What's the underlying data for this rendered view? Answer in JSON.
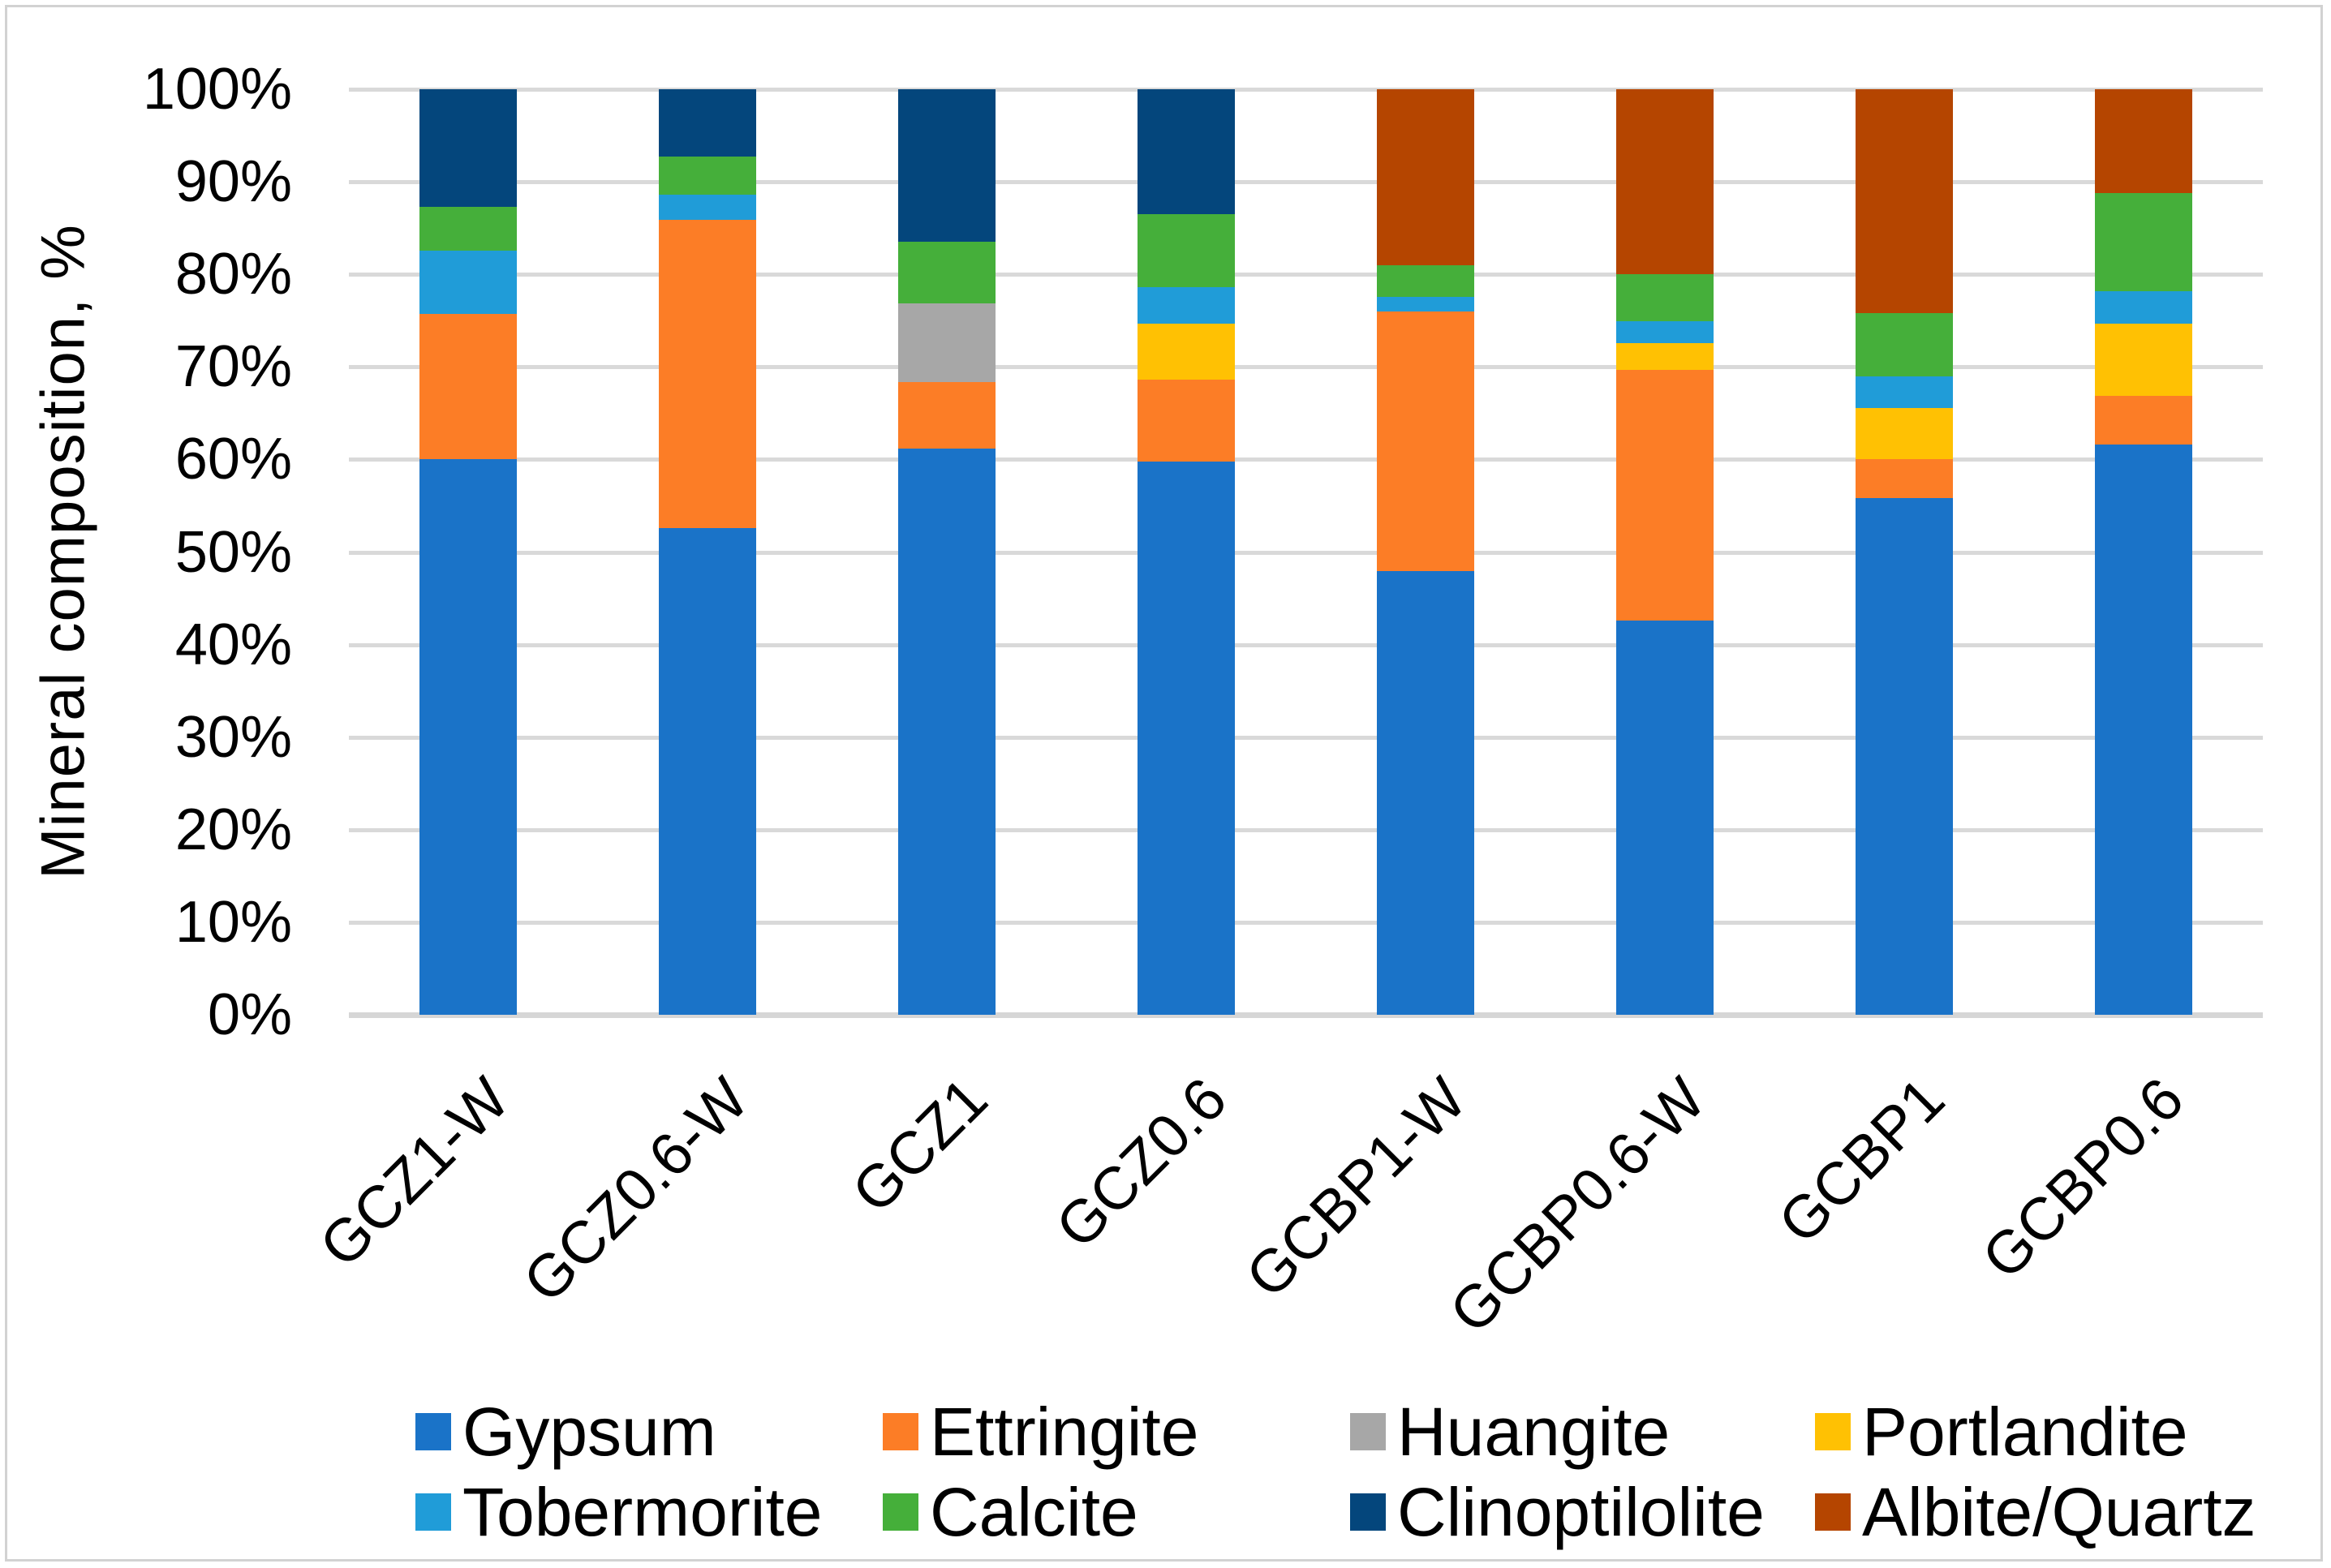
{
  "chart_data": {
    "type": "bar",
    "stacked": true,
    "percent_stacked": true,
    "title": "",
    "ylabel": "Mineral composition, %",
    "xlabel": "",
    "ylim": [
      0,
      100
    ],
    "grid": true,
    "legend_position": "bottom",
    "yticks": [
      0,
      10,
      20,
      30,
      40,
      50,
      60,
      70,
      80,
      90,
      100
    ],
    "ytick_labels": [
      "0%",
      "10%",
      "20%",
      "30%",
      "40%",
      "50%",
      "60%",
      "70%",
      "80%",
      "90%",
      "100%"
    ],
    "categories": [
      "GCZ1-W",
      "GCZ0.6-W",
      "GCZ1",
      "GCZ0.6",
      "GCBP1-W",
      "GCBP0.6-W",
      "GCBP1",
      "GCBP0.6"
    ],
    "series": [
      {
        "name": "Gypsum",
        "color": "#1A73C8",
        "values": [
          60.0,
          52.6,
          61.2,
          59.8,
          47.9,
          42.6,
          55.8,
          61.6
        ]
      },
      {
        "name": "Ettringite",
        "color": "#FC7D26",
        "values": [
          15.7,
          33.3,
          7.2,
          8.8,
          28.1,
          27.1,
          4.2,
          5.3
        ]
      },
      {
        "name": "Huangite",
        "color": "#A7A7A7",
        "values": [
          0.0,
          0.0,
          8.5,
          0.0,
          0.0,
          0.0,
          0.0,
          0.0
        ]
      },
      {
        "name": "Portlandite",
        "color": "#FFC103",
        "values": [
          0.0,
          0.0,
          0.0,
          6.1,
          0.0,
          2.9,
          5.6,
          7.8
        ]
      },
      {
        "name": "Tobermorite",
        "color": "#209CD8",
        "values": [
          6.9,
          2.7,
          0.0,
          3.9,
          1.6,
          2.3,
          3.4,
          3.5
        ]
      },
      {
        "name": "Calcite",
        "color": "#45AF3A",
        "values": [
          4.7,
          4.1,
          6.6,
          7.9,
          3.4,
          5.1,
          6.8,
          10.6
        ]
      },
      {
        "name": "Clinoptilolite",
        "color": "#04467C",
        "values": [
          12.7,
          7.3,
          16.5,
          13.5,
          0.0,
          0.0,
          0.0,
          0.0
        ]
      },
      {
        "name": "Albite/Quartz",
        "color": "#B54500",
        "values": [
          0.0,
          0.0,
          0.0,
          0.0,
          19.0,
          20.0,
          24.2,
          11.2
        ]
      }
    ],
    "legend_rows": [
      [
        0,
        1,
        2,
        3
      ],
      [
        4,
        5,
        6,
        7
      ]
    ]
  },
  "colors": {
    "background": "#FFFFFF",
    "gridline": "#D9D9D9",
    "axis_line": "#D6D6D6",
    "border": "#D2D2D2",
    "text": "#000000"
  }
}
